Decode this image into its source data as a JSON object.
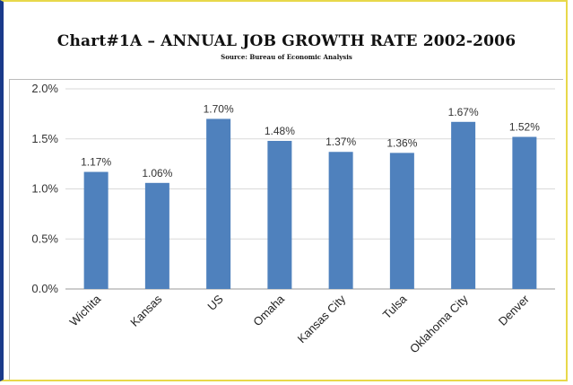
{
  "chart_data": {
    "type": "bar",
    "title": "Chart#1A – ANNUAL JOB GROWTH RATE 2002-2006",
    "subtitle": "Source: Bureau of Economic Analysis",
    "categories": [
      "Wichita",
      "Kansas",
      "US",
      "Omaha",
      "Kansas City",
      "Tulsa",
      "Oklahoma City",
      "Denver"
    ],
    "values": [
      1.17,
      1.06,
      1.7,
      1.48,
      1.37,
      1.36,
      1.67,
      1.52
    ],
    "data_labels": [
      "1.17%",
      "1.06%",
      "1.70%",
      "1.48%",
      "1.37%",
      "1.36%",
      "1.67%",
      "1.52%"
    ],
    "yticks": [
      "0.0%",
      "0.5%",
      "1.0%",
      "1.5%",
      "2.0%"
    ],
    "ylim": [
      0,
      2.0
    ],
    "grid": true,
    "legend": "none",
    "bar_color": "#4f81bd"
  }
}
